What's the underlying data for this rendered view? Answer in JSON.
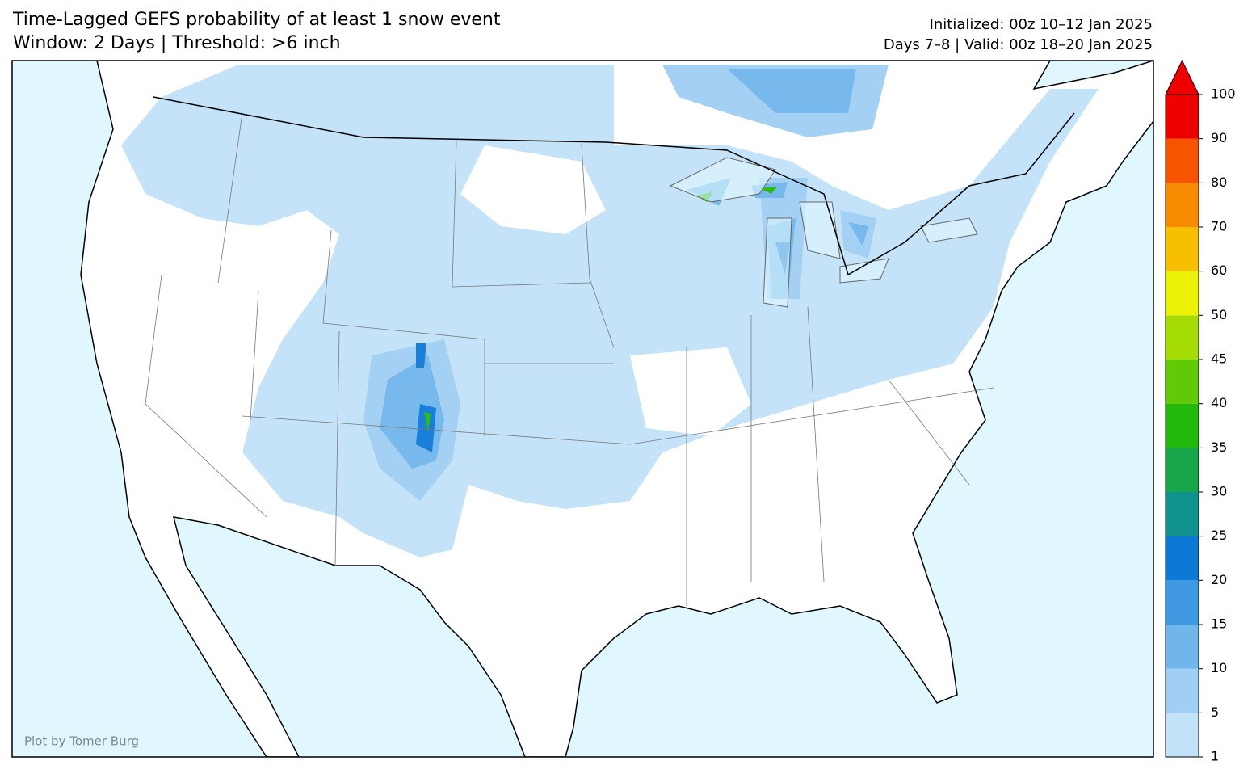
{
  "header": {
    "title_line1": "Time-Lagged GEFS probability of at least 1 snow event",
    "title_line2": "Window: 2 Days | Threshold: >6 inch",
    "initialized": "Initialized: 00z 10–12 Jan 2025",
    "valid": "Days 7–8 | Valid: 00z 18–20 Jan 2025"
  },
  "credit": "Plot by Tomer Burg",
  "colorbar": {
    "ticks": [
      1,
      5,
      10,
      15,
      20,
      25,
      30,
      35,
      40,
      45,
      50,
      60,
      70,
      80,
      90,
      100
    ],
    "colors": [
      "#c2e2f8",
      "#a0cff3",
      "#70b6eb",
      "#3f99e0",
      "#0d79d6",
      "#10928f",
      "#17a64a",
      "#22b80c",
      "#5fca05",
      "#a6dc06",
      "#ecf205",
      "#f6c000",
      "#f88a00",
      "#f65400",
      "#ee0000"
    ],
    "over_color": "#ee0000"
  }
}
